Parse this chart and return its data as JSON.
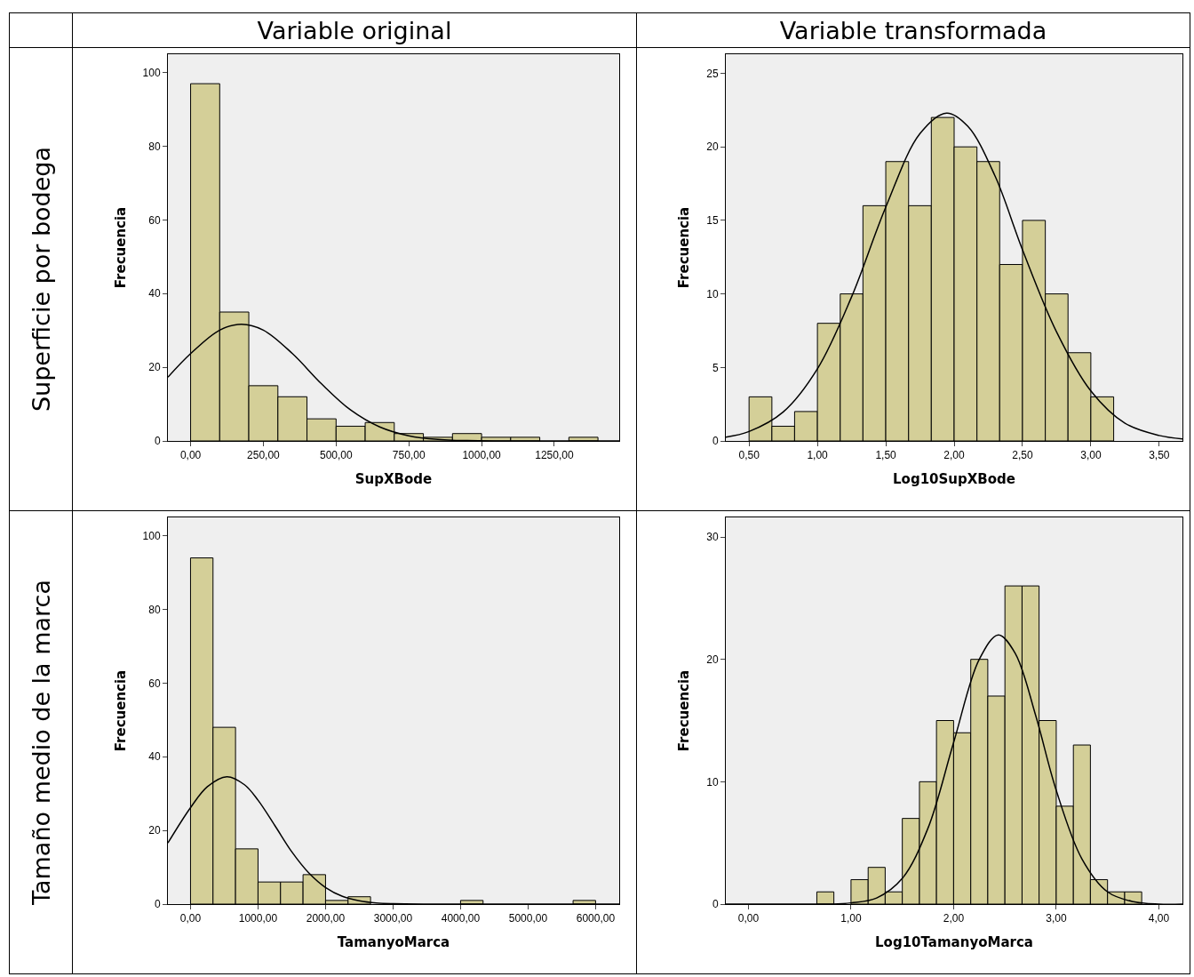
{
  "chart_data": [
    {
      "type": "histogram",
      "title": "Variable original",
      "annotations": [
        "Superficie por bodega"
      ],
      "xlabel": "SupXBode",
      "ylabel": "Frecuencia",
      "color": "#d4cf98",
      "grid": false,
      "bins": [
        0,
        100,
        200,
        300,
        400,
        500,
        600,
        700,
        800,
        900,
        1000,
        1100,
        1200,
        1300,
        1400
      ],
      "values": [
        97,
        35,
        15,
        12,
        6,
        4,
        5,
        2,
        1,
        2,
        1,
        1,
        0,
        1
      ],
      "xlim": [
        -78,
        1473
      ],
      "xticks": [
        {
          "value": 0,
          "label": "0,00"
        },
        {
          "value": 250,
          "label": "250,00"
        },
        {
          "value": 500,
          "label": "500,00"
        },
        {
          "value": 750,
          "label": "750,00"
        },
        {
          "value": 1000,
          "label": "1000,00"
        },
        {
          "value": 1250,
          "label": "1250,00"
        }
      ],
      "ylim": [
        0,
        105
      ],
      "yticks": [
        0,
        20,
        40,
        60,
        80,
        100
      ],
      "series": [
        {
          "type": "line",
          "color": "#000000",
          "x": [
            -78,
            0,
            100,
            175,
            250,
            350,
            450,
            550,
            650,
            750,
            850,
            950,
            1050,
            1200,
            1473
          ],
          "values": [
            17.3,
            23.7,
            30.1,
            31.7,
            30.1,
            23.7,
            15.5,
            8.4,
            3.8,
            1.4,
            0.4,
            0.1,
            0,
            0,
            0
          ]
        }
      ]
    },
    {
      "type": "histogram",
      "title": "Variable transformada",
      "xlabel": "Log10SupXBode",
      "ylabel": "Frecuencia",
      "color": "#d4cf98",
      "grid": false,
      "bins": [
        0.5,
        0.667,
        0.833,
        1,
        1.167,
        1.333,
        1.5,
        1.667,
        1.833,
        2,
        2.167,
        2.333,
        2.5,
        2.667,
        2.833,
        3,
        3.167
      ],
      "values": [
        3,
        1,
        2,
        8,
        10,
        16,
        19,
        16,
        22,
        20,
        19,
        12,
        15,
        10,
        6,
        3
      ],
      "xlim": [
        0.33,
        3.67
      ],
      "xticks": [
        {
          "value": 0.5,
          "label": "0,50"
        },
        {
          "value": 1,
          "label": "1,00"
        },
        {
          "value": 1.5,
          "label": "1,50"
        },
        {
          "value": 2,
          "label": "2,00"
        },
        {
          "value": 2.5,
          "label": "2,50"
        },
        {
          "value": 3,
          "label": "3,00"
        },
        {
          "value": 3.5,
          "label": "3,50"
        }
      ],
      "ylim": [
        0,
        26.3
      ],
      "yticks": [
        0,
        5,
        10,
        15,
        20,
        25
      ],
      "series": [
        {
          "type": "line",
          "color": "#000000",
          "x": [
            0.33,
            0.5,
            0.75,
            1,
            1.25,
            1.5,
            1.75,
            1.945,
            2.1,
            2.3,
            2.5,
            2.75,
            3,
            3.25,
            3.5,
            3.67
          ],
          "values": [
            0.26,
            0.64,
            1.97,
            4.9,
            9.8,
            15.9,
            20.9,
            22.3,
            21.4,
            18,
            13,
            7.4,
            3.4,
            1.2,
            0.37,
            0.14
          ]
        }
      ]
    },
    {
      "type": "histogram",
      "annotations": [
        "Tamaño medio de la marca"
      ],
      "xlabel": "TamanyoMarca",
      "ylabel": "Frecuencia",
      "color": "#d4cf98",
      "grid": false,
      "bins": [
        0,
        333.3,
        666.7,
        1000,
        1333.3,
        1666.7,
        2000,
        2333.3,
        2666.7,
        3000,
        3333.3,
        3666.7,
        4000,
        4333.3,
        4666.7,
        5000,
        5333.3,
        5666.7,
        6000
      ],
      "values": [
        94,
        48,
        15,
        6,
        6,
        8,
        1,
        2,
        0,
        0,
        0,
        0,
        1,
        0,
        0,
        0,
        0,
        1
      ],
      "xlim": [
        -335,
        6350
      ],
      "xticks": [
        {
          "value": 0,
          "label": "0,00"
        },
        {
          "value": 1000,
          "label": "1000,00"
        },
        {
          "value": 2000,
          "label": "2000,00"
        },
        {
          "value": 3000,
          "label": "3000,00"
        },
        {
          "value": 4000,
          "label": "4000,00"
        },
        {
          "value": 5000,
          "label": "5000,00"
        },
        {
          "value": 6000,
          "label": "6000,00"
        }
      ],
      "ylim": [
        0,
        105
      ],
      "yticks": [
        0,
        20,
        40,
        60,
        80,
        100
      ],
      "series": [
        {
          "type": "line",
          "color": "#000000",
          "x": [
            -335,
            0,
            250,
            539,
            800,
            1000,
            1250,
            1500,
            1750,
            2000,
            2250,
            2500,
            2750,
            3000,
            3500,
            4000,
            6350
          ],
          "values": [
            16.6,
            26.2,
            31.9,
            34.6,
            32.4,
            28.2,
            21.3,
            14.2,
            8.5,
            4.5,
            2.1,
            0.9,
            0.3,
            0.1,
            0,
            0,
            0
          ]
        }
      ]
    },
    {
      "type": "histogram",
      "xlabel": "Log10TamanyoMarca",
      "ylabel": "Frecuencia",
      "color": "#d4cf98",
      "grid": false,
      "bins": [
        0.667,
        0.833,
        1,
        1.167,
        1.333,
        1.5,
        1.667,
        1.833,
        2,
        2.167,
        2.333,
        2.5,
        2.667,
        2.833,
        3,
        3.167,
        3.333,
        3.5,
        3.667,
        3.833
      ],
      "values": [
        1,
        0,
        2,
        3,
        1,
        7,
        10,
        15,
        14,
        20,
        17,
        26,
        26,
        15,
        8,
        13,
        2,
        1,
        1
      ],
      "xlim": [
        -0.22,
        4.23
      ],
      "xticks": [
        {
          "value": 0,
          "label": "0,00"
        },
        {
          "value": 1,
          "label": "1,00"
        },
        {
          "value": 2,
          "label": "2,00"
        },
        {
          "value": 3,
          "label": "3,00"
        },
        {
          "value": 4,
          "label": "4,00"
        }
      ],
      "ylim": [
        0,
        31.6
      ],
      "yticks": [
        0,
        10,
        20,
        30
      ],
      "series": [
        {
          "type": "line",
          "color": "#000000",
          "x": [
            -0.22,
            0,
            0.5,
            0.8,
            1,
            1.25,
            1.5,
            1.75,
            2,
            2.25,
            2.436,
            2.6,
            2.8,
            3,
            3.25,
            3.5,
            3.75,
            4,
            4.23
          ],
          "values": [
            0,
            0,
            0,
            0,
            0.1,
            0.5,
            2.1,
            6.2,
            13.2,
            20,
            22,
            20.5,
            15.4,
            9.3,
            3.7,
            1,
            0.2,
            0,
            0
          ]
        }
      ]
    }
  ]
}
